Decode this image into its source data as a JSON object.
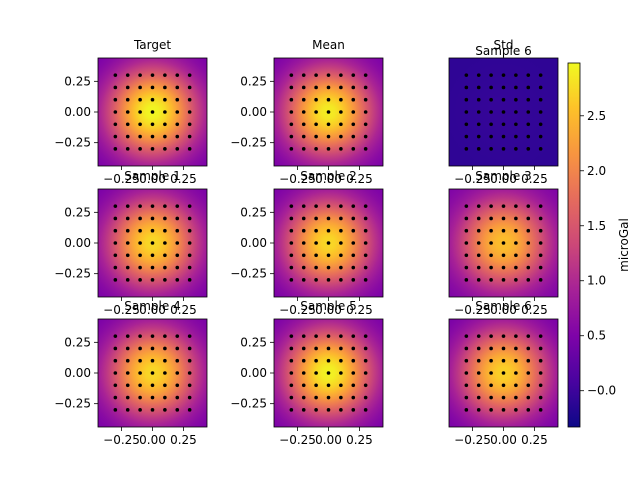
{
  "figure": {
    "colormap": "plasma",
    "grid": false,
    "colorbar": {
      "label": "microGal",
      "range": [
        -0.33,
        2.98
      ],
      "ticks": [
        -0.0,
        0.5,
        1.0,
        1.5,
        2.0,
        2.5
      ],
      "tick_labels": [
        "−0.0",
        "0.5",
        "1.0",
        "1.5",
        "2.0",
        "2.5"
      ]
    }
  },
  "chart_data": [
    {
      "type": "heatmap",
      "title": "Target",
      "peak": 2.98,
      "floor": 0.35,
      "xlim": [
        -0.44,
        0.44
      ],
      "ylim": [
        -0.44,
        0.44
      ],
      "xticks": [
        -0.25,
        0.0,
        0.25
      ],
      "xtick_labels": [
        "−0.25",
        "0.00",
        "0.25"
      ],
      "yticks": [
        0.25,
        0.0,
        -0.25
      ],
      "ytick_labels": [
        "0.25",
        "0.00",
        "−0.25"
      ],
      "show_xticks": true,
      "show_yticks": true
    },
    {
      "type": "heatmap",
      "title": "Mean",
      "peak": 2.9,
      "floor": 0.35,
      "xlim": [
        -0.44,
        0.44
      ],
      "ylim": [
        -0.44,
        0.44
      ],
      "xticks": [
        -0.25,
        0.0,
        0.25
      ],
      "xtick_labels": [
        "−0.25",
        "0.00",
        "0.25"
      ],
      "yticks": [
        0.25,
        0.0,
        -0.25
      ],
      "ytick_labels": [
        "0.25",
        "0.00",
        "−0.25"
      ],
      "show_xticks": true,
      "show_yticks": true
    },
    {
      "type": "heatmap",
      "title": "Std",
      "subtitle": "Sample 6",
      "peak": -0.05,
      "floor": -0.1,
      "xlim": [
        -0.44,
        0.44
      ],
      "ylim": [
        -0.44,
        0.44
      ],
      "xticks": [
        -0.25,
        0.0,
        0.25
      ],
      "xtick_labels": [
        "−0.25",
        "0.00",
        "0.25"
      ],
      "yticks": [],
      "ytick_labels": [],
      "show_xticks": true,
      "show_yticks": false
    },
    {
      "type": "heatmap",
      "title": "Sample 1",
      "peak": 2.75,
      "floor": 0.35,
      "xlim": [
        -0.44,
        0.44
      ],
      "ylim": [
        -0.44,
        0.44
      ],
      "xticks": [
        -0.25,
        0.0,
        0.25
      ],
      "xtick_labels": [
        "−0.25",
        "0.00",
        "0.25"
      ],
      "yticks": [
        0.25,
        0.0,
        -0.25
      ],
      "ytick_labels": [
        "0.25",
        "0.00",
        "−0.25"
      ],
      "show_xticks": true,
      "show_yticks": true
    },
    {
      "type": "heatmap",
      "title": "Sample 2",
      "peak": 2.75,
      "floor": 0.35,
      "xlim": [
        -0.44,
        0.44
      ],
      "ylim": [
        -0.44,
        0.44
      ],
      "xticks": [
        -0.25,
        0.0,
        0.25
      ],
      "xtick_labels": [
        "−0.25",
        "0.00",
        "0.25"
      ],
      "yticks": [
        0.25,
        0.0,
        -0.25
      ],
      "ytick_labels": [
        "0.25",
        "0.00",
        "−0.25"
      ],
      "show_xticks": true,
      "show_yticks": true
    },
    {
      "type": "heatmap",
      "title": "Sample 3",
      "peak": 2.55,
      "floor": 0.4,
      "xlim": [
        -0.44,
        0.44
      ],
      "ylim": [
        -0.44,
        0.44
      ],
      "xticks": [
        -0.25,
        0.0,
        0.25
      ],
      "xtick_labels": [
        "−0.25",
        "0.00",
        "0.25"
      ],
      "yticks": [],
      "ytick_labels": [],
      "show_xticks": true,
      "show_yticks": false
    },
    {
      "type": "heatmap",
      "title": "Sample 4",
      "peak": 2.75,
      "floor": 0.35,
      "xlim": [
        -0.44,
        0.44
      ],
      "ylim": [
        -0.44,
        0.44
      ],
      "xticks": [
        -0.25,
        0.0,
        0.25
      ],
      "xtick_labels": [
        "−0.25",
        "0.00",
        "0.25"
      ],
      "yticks": [
        0.25,
        0.0,
        -0.25
      ],
      "ytick_labels": [
        "0.25",
        "0.00",
        "−0.25"
      ],
      "show_xticks": true,
      "show_yticks": true
    },
    {
      "type": "heatmap",
      "title": "Sample 5",
      "peak": 2.95,
      "floor": 0.35,
      "xlim": [
        -0.44,
        0.44
      ],
      "ylim": [
        -0.44,
        0.44
      ],
      "xticks": [
        -0.25,
        0.0,
        0.25
      ],
      "xtick_labels": [
        "−0.25",
        "0.00",
        "0.25"
      ],
      "yticks": [
        0.25,
        0.0,
        -0.25
      ],
      "ytick_labels": [
        "0.25",
        "0.00",
        "−0.25"
      ],
      "show_xticks": true,
      "show_yticks": true
    },
    {
      "type": "heatmap",
      "title": "Sample 6",
      "peak": 2.7,
      "floor": 0.35,
      "xlim": [
        -0.44,
        0.44
      ],
      "ylim": [
        -0.44,
        0.44
      ],
      "xticks": [
        -0.25,
        0.0,
        0.25
      ],
      "xtick_labels": [
        "−0.25",
        "0.00",
        "0.25"
      ],
      "yticks": [],
      "ytick_labels": [],
      "show_xticks": true,
      "show_yticks": false
    }
  ],
  "stations": {
    "x": [
      -0.3,
      -0.2,
      -0.1,
      0.0,
      0.1,
      0.2,
      0.3
    ],
    "y": [
      -0.3,
      -0.2,
      -0.1,
      0.0,
      0.1,
      0.2,
      0.3
    ]
  }
}
